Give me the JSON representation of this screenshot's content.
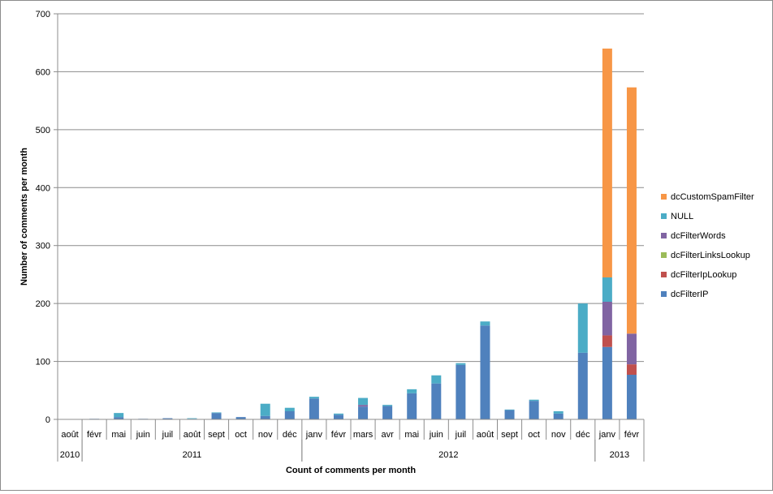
{
  "chart_data": {
    "type": "bar",
    "stacked": true,
    "xlabel": "Count of comments per month",
    "ylabel": "Number of comments per month",
    "ylim": [
      0,
      700
    ],
    "yticks": [
      0,
      100,
      200,
      300,
      400,
      500,
      600,
      700
    ],
    "grid": true,
    "legend_position": "right",
    "categories": [
      "août",
      "févr",
      "mai",
      "juin",
      "juil",
      "août",
      "sept",
      "oct",
      "nov",
      "déc",
      "janv",
      "févr",
      "mars",
      "avr",
      "mai",
      "juin",
      "juil",
      "août",
      "sept",
      "oct",
      "nov",
      "déc",
      "janv",
      "févr"
    ],
    "years": [
      {
        "label": "2010",
        "start": 0,
        "end": 0
      },
      {
        "label": "2011",
        "start": 1,
        "end": 9
      },
      {
        "label": "2012",
        "start": 10,
        "end": 21
      },
      {
        "label": "2013",
        "start": 22,
        "end": 23
      }
    ],
    "series": [
      {
        "name": "dcFilterIP",
        "color": "#4f81bd",
        "values": [
          0,
          1,
          4,
          1,
          2,
          1,
          11,
          4,
          6,
          14,
          36,
          8,
          22,
          23,
          45,
          62,
          94,
          162,
          16,
          32,
          10,
          115,
          125,
          77
        ]
      },
      {
        "name": "dcFilterIpLookup",
        "color": "#c0504d",
        "values": [
          0,
          0,
          0,
          0,
          0,
          0,
          0,
          0,
          0,
          0,
          0,
          0,
          0,
          0,
          0,
          0,
          0,
          0,
          0,
          0,
          0,
          0,
          20,
          18
        ]
      },
      {
        "name": "dcFilterLinksLookup",
        "color": "#9bbb59",
        "values": [
          0,
          0,
          0,
          0,
          0,
          0,
          0,
          0,
          0,
          0,
          0,
          0,
          0,
          0,
          0,
          0,
          0,
          0,
          0,
          0,
          0,
          0,
          0,
          0
        ]
      },
      {
        "name": "dcFilterWords",
        "color": "#8064a2",
        "values": [
          0,
          0,
          0,
          0,
          0,
          0,
          0,
          0,
          0,
          0,
          0,
          0,
          3,
          0,
          0,
          0,
          0,
          0,
          0,
          0,
          0,
          0,
          58,
          53
        ]
      },
      {
        "name": "NULL",
        "color": "#4bacc6",
        "values": [
          0,
          0,
          7,
          0,
          0,
          1,
          1,
          0,
          21,
          6,
          3,
          2,
          12,
          2,
          7,
          14,
          3,
          7,
          1,
          2,
          4,
          85,
          42,
          0
        ]
      },
      {
        "name": "dcCustomSpamFilter",
        "color": "#f79646",
        "values": [
          0,
          0,
          0,
          0,
          0,
          0,
          0,
          0,
          0,
          0,
          0,
          0,
          0,
          0,
          0,
          0,
          0,
          0,
          0,
          0,
          0,
          0,
          395,
          425
        ]
      }
    ]
  }
}
